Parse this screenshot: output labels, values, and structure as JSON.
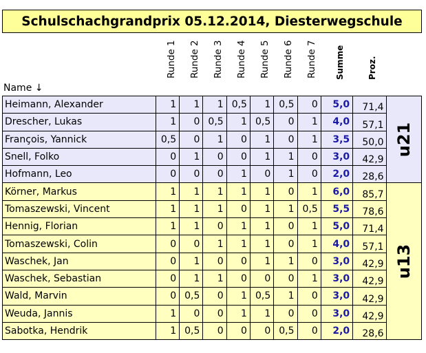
{
  "title": "Schulschachgrandprix 05.12.2014, Diesterwegschule",
  "headers": {
    "name": "Name ↓",
    "rounds": [
      "Runde 1",
      "Runde 2",
      "Runde 3",
      "Runde 4",
      "Runde 5",
      "Runde 6",
      "Runde 7"
    ],
    "sum": "Summe",
    "pct": "Proz."
  },
  "groups": [
    {
      "label": "u21",
      "rows": [
        {
          "name": "Heimann, Alexander",
          "r": [
            "1",
            "1",
            "1",
            "0,5",
            "1",
            "0,5",
            "0"
          ],
          "sum": "5,0",
          "pct": "71,4"
        },
        {
          "name": "Drescher, Lukas",
          "r": [
            "1",
            "0",
            "0,5",
            "1",
            "0,5",
            "0",
            "1"
          ],
          "sum": "4,0",
          "pct": "57,1"
        },
        {
          "name": "François, Yannick",
          "r": [
            "0,5",
            "0",
            "1",
            "0",
            "1",
            "0",
            "1"
          ],
          "sum": "3,5",
          "pct": "50,0"
        },
        {
          "name": "Snell, Folko",
          "r": [
            "0",
            "1",
            "0",
            "0",
            "1",
            "1",
            "0"
          ],
          "sum": "3,0",
          "pct": "42,9"
        },
        {
          "name": "Hofmann, Leo",
          "r": [
            "0",
            "0",
            "0",
            "1",
            "0",
            "1",
            "0"
          ],
          "sum": "2,0",
          "pct": "28,6"
        }
      ]
    },
    {
      "label": "u13",
      "rows": [
        {
          "name": "Körner, Markus",
          "r": [
            "1",
            "1",
            "1",
            "1",
            "1",
            "0",
            "1"
          ],
          "sum": "6,0",
          "pct": "85,7"
        },
        {
          "name": "Tomaszewski, Vincent",
          "r": [
            "1",
            "1",
            "1",
            "0",
            "1",
            "1",
            "0,5"
          ],
          "sum": "5,5",
          "pct": "78,6"
        },
        {
          "name": "Hennig, Florian",
          "r": [
            "1",
            "1",
            "0",
            "1",
            "1",
            "0",
            "1"
          ],
          "sum": "5,0",
          "pct": "71,4"
        },
        {
          "name": "Tomaszewski, Colin",
          "r": [
            "0",
            "0",
            "1",
            "1",
            "1",
            "0",
            "1"
          ],
          "sum": "4,0",
          "pct": "57,1"
        },
        {
          "name": "Waschek, Jan",
          "r": [
            "0",
            "1",
            "0",
            "0",
            "1",
            "1",
            "0"
          ],
          "sum": "3,0",
          "pct": "42,9"
        },
        {
          "name": "Waschek, Sebastian",
          "r": [
            "0",
            "1",
            "1",
            "0",
            "0",
            "0",
            "1"
          ],
          "sum": "3,0",
          "pct": "42,9"
        },
        {
          "name": "Wald, Marvin",
          "r": [
            "0",
            "0,5",
            "0",
            "1",
            "0,5",
            "1",
            "0"
          ],
          "sum": "3,0",
          "pct": "42,9"
        },
        {
          "name": "Weuda, Jannis",
          "r": [
            "1",
            "0",
            "0",
            "1",
            "1",
            "0",
            "0"
          ],
          "sum": "3,0",
          "pct": "42,9"
        },
        {
          "name": "Sabotka, Hendrik",
          "r": [
            "1",
            "0,5",
            "0",
            "0",
            "0",
            "0,5",
            "0"
          ],
          "sum": "2,0",
          "pct": "28,6"
        }
      ]
    }
  ]
}
